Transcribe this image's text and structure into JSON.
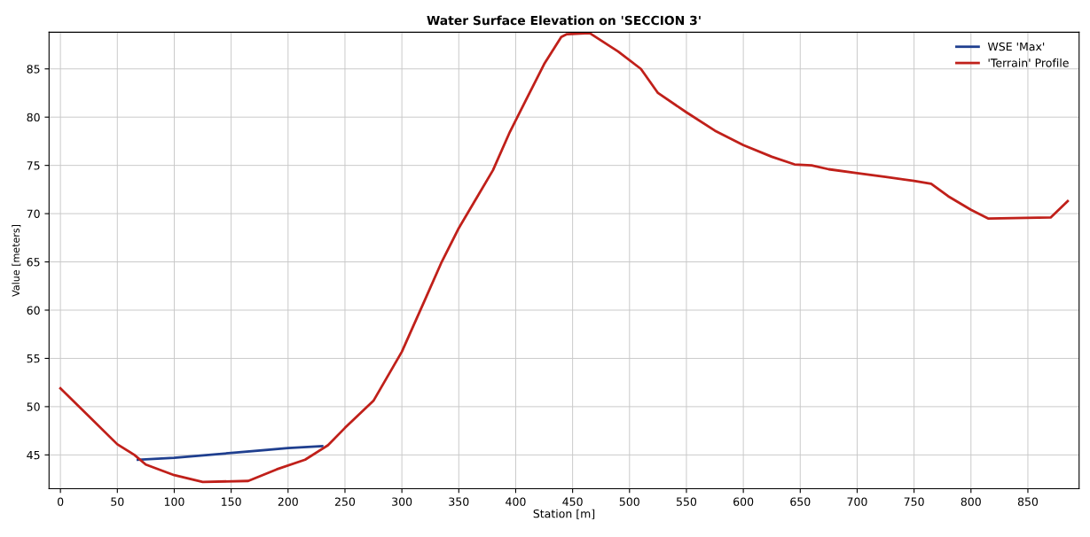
{
  "chart_data": {
    "type": "line",
    "title": "Water Surface Elevation on 'SECCION 3'",
    "xlabel": "Station [m]",
    "ylabel": "Value [meters]",
    "xlim": [
      -10,
      895
    ],
    "ylim": [
      41.5,
      88.8
    ],
    "xticks": [
      0,
      50,
      100,
      150,
      200,
      250,
      300,
      350,
      400,
      450,
      500,
      550,
      600,
      650,
      700,
      750,
      800,
      850
    ],
    "yticks": [
      45,
      50,
      55,
      60,
      65,
      70,
      75,
      80,
      85
    ],
    "grid": true,
    "legend": "top right",
    "marker": "none",
    "line_style": "solid",
    "series": [
      {
        "name": "WSE 'Max'",
        "color": "#1f3f8f",
        "x": [
          68,
          100,
          150,
          200,
          230
        ],
        "values": [
          44.5,
          44.7,
          45.2,
          45.7,
          45.9
        ]
      },
      {
        "name": "'Terrain' Profile",
        "color": "#c0201a",
        "x": [
          0,
          25,
          50,
          65,
          75,
          100,
          125,
          165,
          190,
          215,
          235,
          250,
          275,
          300,
          320,
          335,
          350,
          365,
          380,
          395,
          410,
          425,
          440,
          445,
          465,
          490,
          510,
          525,
          550,
          575,
          600,
          625,
          645,
          660,
          675,
          700,
          725,
          750,
          765,
          780,
          800,
          815,
          870,
          885
        ],
        "values": [
          51.9,
          49.0,
          46.1,
          45.0,
          44.0,
          42.9,
          42.2,
          42.3,
          43.5,
          44.5,
          46.0,
          47.8,
          50.6,
          55.7,
          61.0,
          65.0,
          68.5,
          71.5,
          74.5,
          78.5,
          82.0,
          85.5,
          88.3,
          88.6,
          88.7,
          86.8,
          85.0,
          82.5,
          80.5,
          78.6,
          77.1,
          75.9,
          75.1,
          75.0,
          74.6,
          74.2,
          73.8,
          73.4,
          73.1,
          71.8,
          70.4,
          69.5,
          69.6,
          71.3
        ]
      }
    ]
  }
}
